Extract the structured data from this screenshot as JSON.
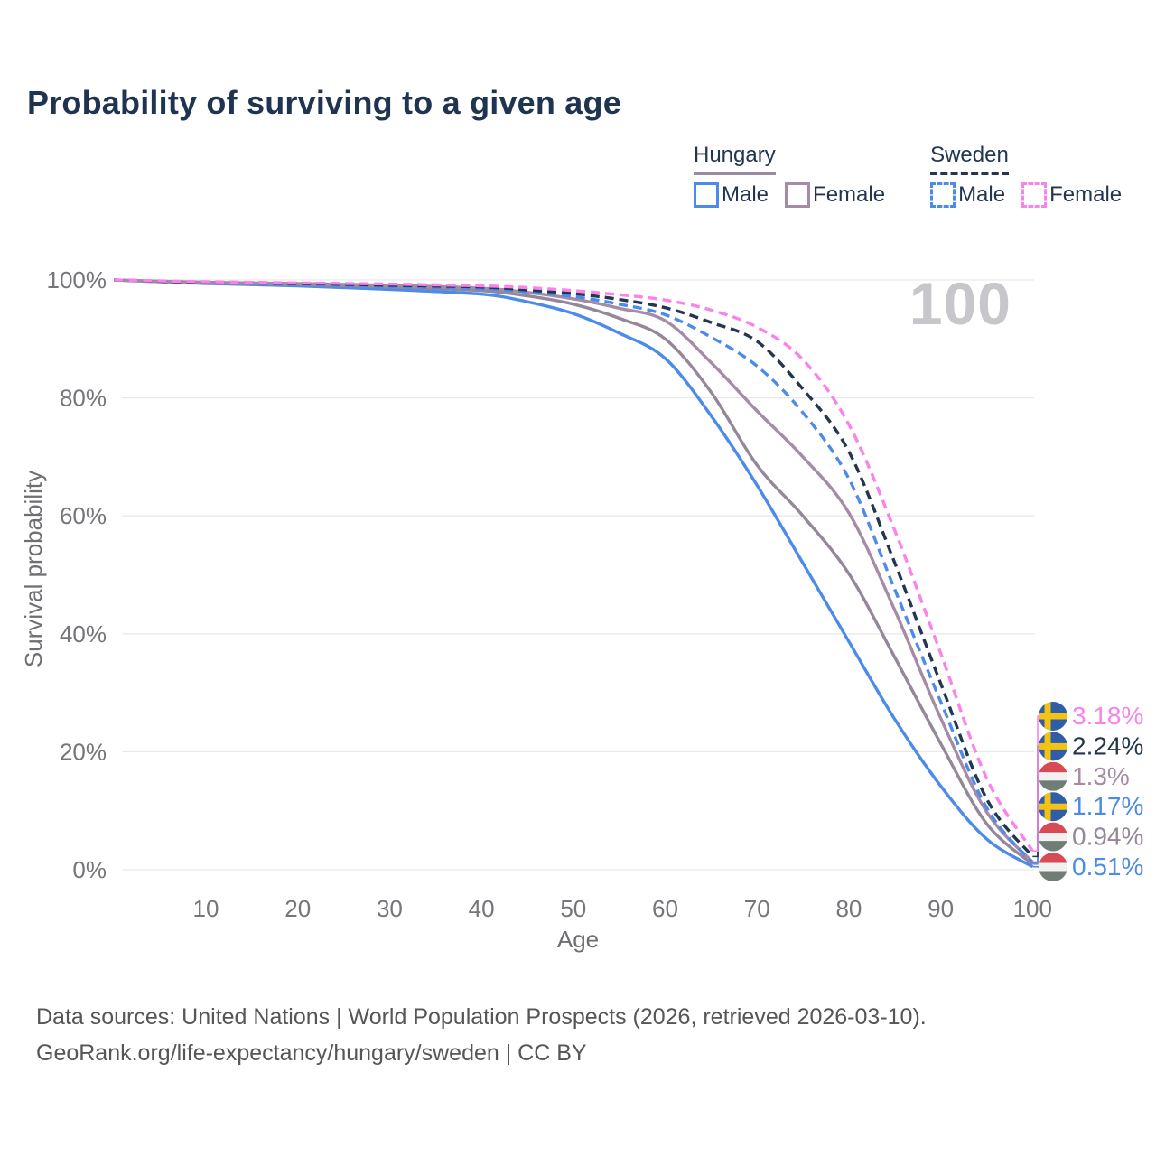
{
  "title": "Probability of surviving to a given age",
  "age_marker": "100",
  "legend": {
    "groups": [
      {
        "country": "Hungary",
        "line_style": "solid",
        "underline_color": "#9b8ba1",
        "items": [
          {
            "label": "Male",
            "color": "#4d8bea"
          },
          {
            "label": "Female",
            "color": "#a58ba5"
          }
        ]
      },
      {
        "country": "Sweden",
        "line_style": "dashed",
        "underline_color": "#22364d",
        "items": [
          {
            "label": "Male",
            "color": "#4d8bea"
          },
          {
            "label": "Female",
            "color": "#f983eb"
          }
        ]
      }
    ]
  },
  "chart_data": {
    "type": "line",
    "title": "Probability of surviving to a given age",
    "xlabel": "Age",
    "ylabel": "Survival probability",
    "xlim": [
      0,
      100
    ],
    "ylim": [
      0,
      100
    ],
    "grid": true,
    "x_ticks": [
      {
        "value": 10,
        "label": "10"
      },
      {
        "value": 20,
        "label": "20"
      },
      {
        "value": 30,
        "label": "30"
      },
      {
        "value": 40,
        "label": "40"
      },
      {
        "value": 50,
        "label": "50"
      },
      {
        "value": 60,
        "label": "60"
      },
      {
        "value": 70,
        "label": "70"
      },
      {
        "value": 80,
        "label": "80"
      },
      {
        "value": 90,
        "label": "90"
      },
      {
        "value": 100,
        "label": "100"
      }
    ],
    "y_ticks": [
      {
        "value": 0,
        "label": "0%"
      },
      {
        "value": 20,
        "label": "20%"
      },
      {
        "value": 40,
        "label": "40%"
      },
      {
        "value": 60,
        "label": "60%"
      },
      {
        "value": 80,
        "label": "80%"
      },
      {
        "value": 100,
        "label": "100%"
      }
    ],
    "ages": [
      0,
      10,
      20,
      30,
      40,
      45,
      50,
      55,
      60,
      65,
      70,
      75,
      80,
      85,
      90,
      95,
      100
    ],
    "series": [
      {
        "name": "Hungary Male",
        "country": "Hungary",
        "sex": "Male",
        "color": "#4d8bea",
        "dashed": false,
        "flag": "hungary",
        "end_label": "0.51%",
        "label_row": 5,
        "values": [
          100,
          99.4,
          99.0,
          98.4,
          97.6,
          96.3,
          94.3,
          91.0,
          86.7,
          77.0,
          65.2,
          52.0,
          38.7,
          25.5,
          14.2,
          5.2,
          0.51
        ]
      },
      {
        "name": "Hungary Both sexes",
        "country": "Hungary",
        "sex": "Both sexes",
        "color": "#94879a",
        "dashed": false,
        "flag": "hungary",
        "end_label": "0.94%",
        "label_row": 4,
        "values": [
          100,
          99.5,
          99.2,
          98.8,
          98.2,
          97.3,
          95.9,
          93.5,
          90.0,
          81.0,
          68.6,
          60.0,
          50.2,
          36.0,
          21.4,
          7.8,
          0.94
        ]
      },
      {
        "name": "Hungary Female",
        "country": "Hungary",
        "sex": "Female",
        "color": "#a58ba5",
        "dashed": false,
        "flag": "hungary",
        "end_label": "1.3%",
        "label_row": 2,
        "values": [
          100,
          99.6,
          99.4,
          99.1,
          98.6,
          97.9,
          96.8,
          95.2,
          93.1,
          86.0,
          77.8,
          70.0,
          60.5,
          44.0,
          25.7,
          9.8,
          1.3
        ]
      },
      {
        "name": "Sweden Male",
        "country": "Sweden",
        "sex": "Male",
        "color": "#4d8bea",
        "dashed": true,
        "flag": "sweden",
        "end_label": "1.17%",
        "label_row": 3,
        "values": [
          100,
          99.6,
          99.3,
          98.9,
          98.5,
          98.0,
          97.2,
          95.9,
          94.1,
          90.3,
          85.4,
          77.5,
          66.3,
          47.5,
          28.5,
          10.5,
          1.17
        ]
      },
      {
        "name": "Sweden Both sexes",
        "country": "Sweden",
        "sex": "Both sexes",
        "color": "#22364d",
        "dashed": true,
        "flag": "sweden",
        "end_label": "2.24%",
        "label_row": 1,
        "values": [
          100,
          99.6,
          99.4,
          99.1,
          98.8,
          98.3,
          97.7,
          96.7,
          95.3,
          92.8,
          89.6,
          81.5,
          70.9,
          52.0,
          31.6,
          12.0,
          2.24
        ]
      },
      {
        "name": "Sweden Female",
        "country": "Sweden",
        "sex": "Female",
        "color": "#f983eb",
        "dashed": true,
        "flag": "sweden",
        "end_label": "3.18%",
        "label_row": 0,
        "values": [
          100,
          99.7,
          99.5,
          99.3,
          99.0,
          98.7,
          98.2,
          97.5,
          96.6,
          94.9,
          92.0,
          86.5,
          75.5,
          57.5,
          36.7,
          15.5,
          3.18
        ]
      }
    ],
    "legend_position": "top-right",
    "flag_colors": {
      "sweden_blue": "#2f5da8",
      "sweden_yellow": "#f2c215",
      "hungary_red": "#d84a54",
      "hungary_white": "#f1f1f1",
      "hungary_green": "#707d74"
    }
  },
  "footer": {
    "line1": "Data sources: United Nations | World Population Prospects (2026, retrieved 2026-03-10).",
    "line2": "GeoRank.org/life-expectancy/hungary/sweden | CC BY"
  }
}
